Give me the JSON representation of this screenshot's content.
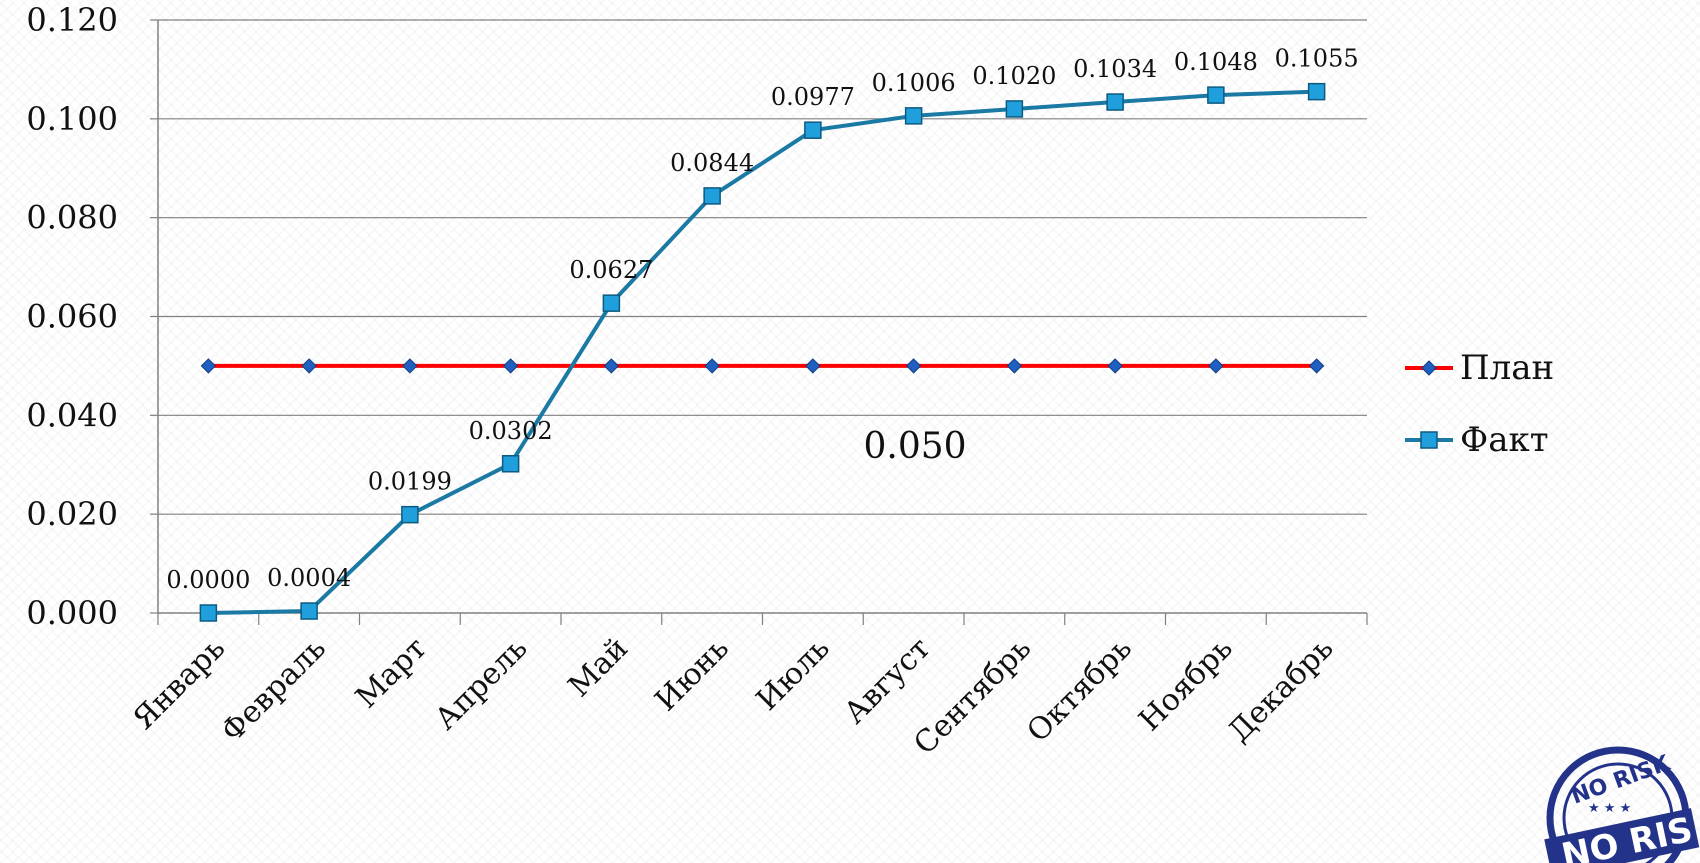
{
  "chart_data": {
    "type": "line",
    "categories": [
      "Январь",
      "Февраль",
      "Март",
      "Апрель",
      "Май",
      "Июнь",
      "Июль",
      "Август",
      "Сентябрь",
      "Октябрь",
      "Ноябрь",
      "Декабрь"
    ],
    "series": [
      {
        "name": "План",
        "values": [
          0.05,
          0.05,
          0.05,
          0.05,
          0.05,
          0.05,
          0.05,
          0.05,
          0.05,
          0.05,
          0.05,
          0.05
        ],
        "color": "#ff0000",
        "marker": "diamond",
        "marker_color": "#1f5fbf"
      },
      {
        "name": "Факт",
        "values": [
          0.0,
          0.0004,
          0.0199,
          0.0302,
          0.0627,
          0.0844,
          0.0977,
          0.1006,
          0.102,
          0.1034,
          0.1048,
          0.1055
        ],
        "color": "#1a7aa4",
        "marker": "square",
        "marker_color": "#1fa0dc"
      }
    ],
    "data_labels": [
      "0.0000",
      "0.0004",
      "0.0199",
      "0.0302",
      "0.0627",
      "0.0844",
      "0.0977",
      "0.1006",
      "0.1020",
      "0.1034",
      "0.1048",
      "0.1055"
    ],
    "y_ticks": [
      "0.000",
      "0.020",
      "0.040",
      "0.060",
      "0.080",
      "0.100",
      "0.120"
    ],
    "ylim": [
      0,
      0.12
    ],
    "annotation": "0.050",
    "grid": true,
    "legend_position": "right",
    "title": "",
    "xlabel": "",
    "ylabel": ""
  },
  "stamp": {
    "text_top": "NO RISK",
    "text_band": "NO RISK"
  }
}
